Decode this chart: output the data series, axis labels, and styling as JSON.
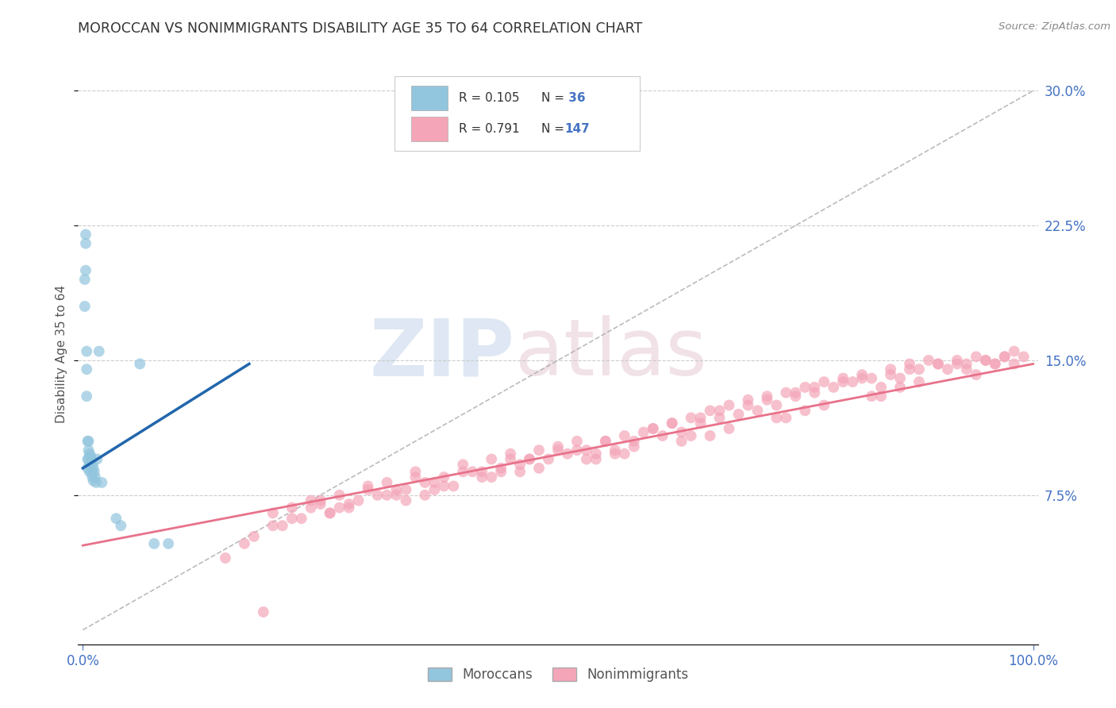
{
  "title": "MOROCCAN VS NONIMMIGRANTS DISABILITY AGE 35 TO 64 CORRELATION CHART",
  "source": "Source: ZipAtlas.com",
  "ylabel": "Disability Age 35 to 64",
  "ytick_labels": [
    "7.5%",
    "15.0%",
    "22.5%",
    "30.0%"
  ],
  "ytick_values": [
    0.075,
    0.15,
    0.225,
    0.3
  ],
  "legend_label1": "Moroccans",
  "legend_label2": "Nonimmigrants",
  "legend_R1": "R = 0.105",
  "legend_N1": "N =  36",
  "legend_R2": "R = 0.791",
  "legend_N2": "N = 147",
  "blue_color": "#92c5de",
  "pink_color": "#f4a6b8",
  "blue_line_color": "#2166ac",
  "pink_line_color": "#e8728a",
  "moroccan_x": [
    0.002,
    0.002,
    0.003,
    0.003,
    0.003,
    0.004,
    0.004,
    0.004,
    0.005,
    0.005,
    0.005,
    0.006,
    0.006,
    0.006,
    0.007,
    0.007,
    0.007,
    0.008,
    0.008,
    0.009,
    0.009,
    0.01,
    0.01,
    0.011,
    0.011,
    0.012,
    0.013,
    0.014,
    0.015,
    0.017,
    0.02,
    0.06,
    0.075,
    0.09,
    0.035,
    0.04
  ],
  "moroccan_y": [
    0.195,
    0.18,
    0.22,
    0.215,
    0.2,
    0.145,
    0.155,
    0.13,
    0.105,
    0.095,
    0.09,
    0.105,
    0.1,
    0.095,
    0.098,
    0.092,
    0.088,
    0.097,
    0.093,
    0.095,
    0.088,
    0.092,
    0.085,
    0.09,
    0.083,
    0.088,
    0.085,
    0.082,
    0.095,
    0.155,
    0.082,
    0.148,
    0.048,
    0.048,
    0.062,
    0.058
  ],
  "nonimmigrant_x": [
    0.15,
    0.17,
    0.18,
    0.19,
    0.2,
    0.21,
    0.22,
    0.23,
    0.24,
    0.25,
    0.26,
    0.27,
    0.28,
    0.29,
    0.3,
    0.31,
    0.32,
    0.33,
    0.34,
    0.35,
    0.36,
    0.37,
    0.38,
    0.39,
    0.4,
    0.41,
    0.42,
    0.43,
    0.44,
    0.45,
    0.46,
    0.47,
    0.48,
    0.49,
    0.5,
    0.51,
    0.52,
    0.53,
    0.54,
    0.55,
    0.56,
    0.57,
    0.58,
    0.59,
    0.6,
    0.61,
    0.62,
    0.63,
    0.64,
    0.65,
    0.66,
    0.67,
    0.68,
    0.69,
    0.7,
    0.71,
    0.72,
    0.73,
    0.74,
    0.75,
    0.76,
    0.77,
    0.78,
    0.79,
    0.8,
    0.81,
    0.82,
    0.83,
    0.84,
    0.85,
    0.86,
    0.87,
    0.88,
    0.89,
    0.9,
    0.91,
    0.92,
    0.93,
    0.94,
    0.95,
    0.96,
    0.97,
    0.98,
    0.99,
    0.2,
    0.25,
    0.3,
    0.35,
    0.4,
    0.45,
    0.5,
    0.55,
    0.6,
    0.65,
    0.7,
    0.75,
    0.8,
    0.85,
    0.9,
    0.95,
    0.22,
    0.27,
    0.32,
    0.37,
    0.42,
    0.47,
    0.52,
    0.57,
    0.62,
    0.67,
    0.72,
    0.77,
    0.82,
    0.87,
    0.92,
    0.97,
    0.24,
    0.34,
    0.44,
    0.54,
    0.64,
    0.74,
    0.84,
    0.94,
    0.28,
    0.38,
    0.48,
    0.58,
    0.68,
    0.78,
    0.88,
    0.98,
    0.33,
    0.43,
    0.53,
    0.63,
    0.73,
    0.83,
    0.93,
    0.26,
    0.36,
    0.46,
    0.56,
    0.66,
    0.76,
    0.86,
    0.96
  ],
  "nonimmigrant_y": [
    0.04,
    0.048,
    0.052,
    0.01,
    0.065,
    0.058,
    0.068,
    0.062,
    0.072,
    0.07,
    0.065,
    0.075,
    0.068,
    0.072,
    0.08,
    0.075,
    0.082,
    0.078,
    0.072,
    0.088,
    0.082,
    0.078,
    0.085,
    0.08,
    0.092,
    0.088,
    0.085,
    0.095,
    0.09,
    0.098,
    0.092,
    0.095,
    0.1,
    0.095,
    0.102,
    0.098,
    0.105,
    0.1,
    0.095,
    0.105,
    0.1,
    0.098,
    0.105,
    0.11,
    0.112,
    0.108,
    0.115,
    0.11,
    0.118,
    0.115,
    0.122,
    0.118,
    0.125,
    0.12,
    0.128,
    0.122,
    0.13,
    0.125,
    0.132,
    0.13,
    0.135,
    0.132,
    0.138,
    0.135,
    0.14,
    0.138,
    0.142,
    0.14,
    0.135,
    0.145,
    0.14,
    0.148,
    0.145,
    0.15,
    0.148,
    0.145,
    0.15,
    0.148,
    0.152,
    0.15,
    0.148,
    0.152,
    0.155,
    0.152,
    0.058,
    0.072,
    0.078,
    0.085,
    0.088,
    0.095,
    0.1,
    0.105,
    0.112,
    0.118,
    0.125,
    0.132,
    0.138,
    0.142,
    0.148,
    0.15,
    0.062,
    0.068,
    0.075,
    0.082,
    0.088,
    0.095,
    0.1,
    0.108,
    0.115,
    0.122,
    0.128,
    0.135,
    0.14,
    0.145,
    0.148,
    0.152,
    0.068,
    0.078,
    0.088,
    0.098,
    0.108,
    0.118,
    0.13,
    0.142,
    0.07,
    0.08,
    0.09,
    0.102,
    0.112,
    0.125,
    0.138,
    0.148,
    0.075,
    0.085,
    0.095,
    0.105,
    0.118,
    0.13,
    0.145,
    0.065,
    0.075,
    0.088,
    0.098,
    0.108,
    0.122,
    0.135,
    0.148
  ],
  "ref_line_color": "#aaaaaa",
  "grid_color": "#cccccc",
  "title_color": "#333333",
  "axis_color": "#4472c4",
  "source_color": "#888888",
  "watermark_zip_color": "#c8d8ec",
  "watermark_atlas_color": "#e8d0d8"
}
